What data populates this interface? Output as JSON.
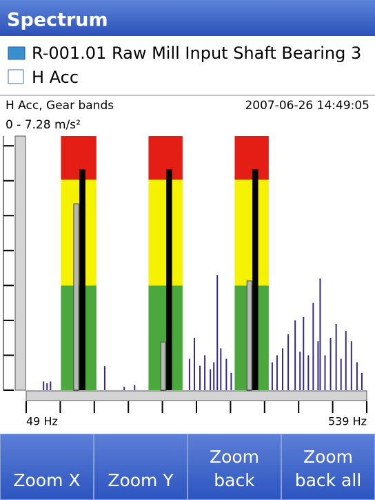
{
  "header": {
    "title": "Spectrum"
  },
  "location": "R-001.01 Raw Mill Input Shaft Bearing 3",
  "measurement": "H Acc",
  "chart_data": {
    "type": "spectrum",
    "title": "H Acc, Gear bands",
    "timestamp": "2007-06-26 14:49:05",
    "range_label": "0 - 7.28 m/s²",
    "ylim": [
      0,
      7.28
    ],
    "yticks": [
      0,
      1,
      2,
      3,
      4,
      5,
      6,
      7
    ],
    "xlim": [
      49,
      539
    ],
    "xticks": [
      {
        "value": 49,
        "label": "49 Hz"
      },
      {
        "value": 539,
        "label": "539 Hz"
      }
    ],
    "minor_xticks": [
      98,
      147,
      196,
      245,
      294,
      343,
      392,
      441,
      490
    ],
    "overall": 7.28,
    "band_levels": [
      3,
      6.03
    ],
    "band_colors": [
      "#4aa83c",
      "#f5f200",
      "#e41e14"
    ],
    "bands": [
      {
        "range": [
          99,
          150
        ],
        "level": 6.33,
        "value": 5.34
      },
      {
        "range": [
          225,
          274
        ],
        "level": 6.33,
        "value": 1.38
      },
      {
        "range": [
          349,
          398
        ],
        "level": 6.33,
        "value": 3.13
      }
    ],
    "spectrum_color": "#34288c",
    "x": [
      74,
      79,
      84,
      162,
      190,
      205,
      284,
      291,
      299,
      306,
      314,
      319,
      324,
      329,
      337,
      344,
      403,
      410,
      418,
      426,
      436,
      443,
      448,
      455,
      462,
      469,
      472,
      479,
      487,
      495,
      502,
      509,
      517,
      525,
      532
    ],
    "values": [
      0.25,
      0.2,
      0.25,
      0.69,
      0.1,
      0.15,
      0.9,
      1.5,
      0.7,
      1.0,
      0.6,
      0.8,
      3.3,
      1.2,
      0.9,
      0.5,
      0.8,
      1.0,
      1.2,
      1.6,
      2.0,
      1.1,
      2.1,
      1.0,
      2.5,
      1.4,
      3.2,
      1.0,
      1.5,
      1.9,
      0.9,
      1.7,
      1.4,
      0.8,
      0.5
    ]
  },
  "buttons": [
    {
      "lines": [
        "Zoom X"
      ]
    },
    {
      "lines": [
        "Zoom Y"
      ]
    },
    {
      "lines": [
        "Zoom",
        "back"
      ]
    },
    {
      "lines": [
        "Zoom",
        "back all"
      ]
    }
  ]
}
